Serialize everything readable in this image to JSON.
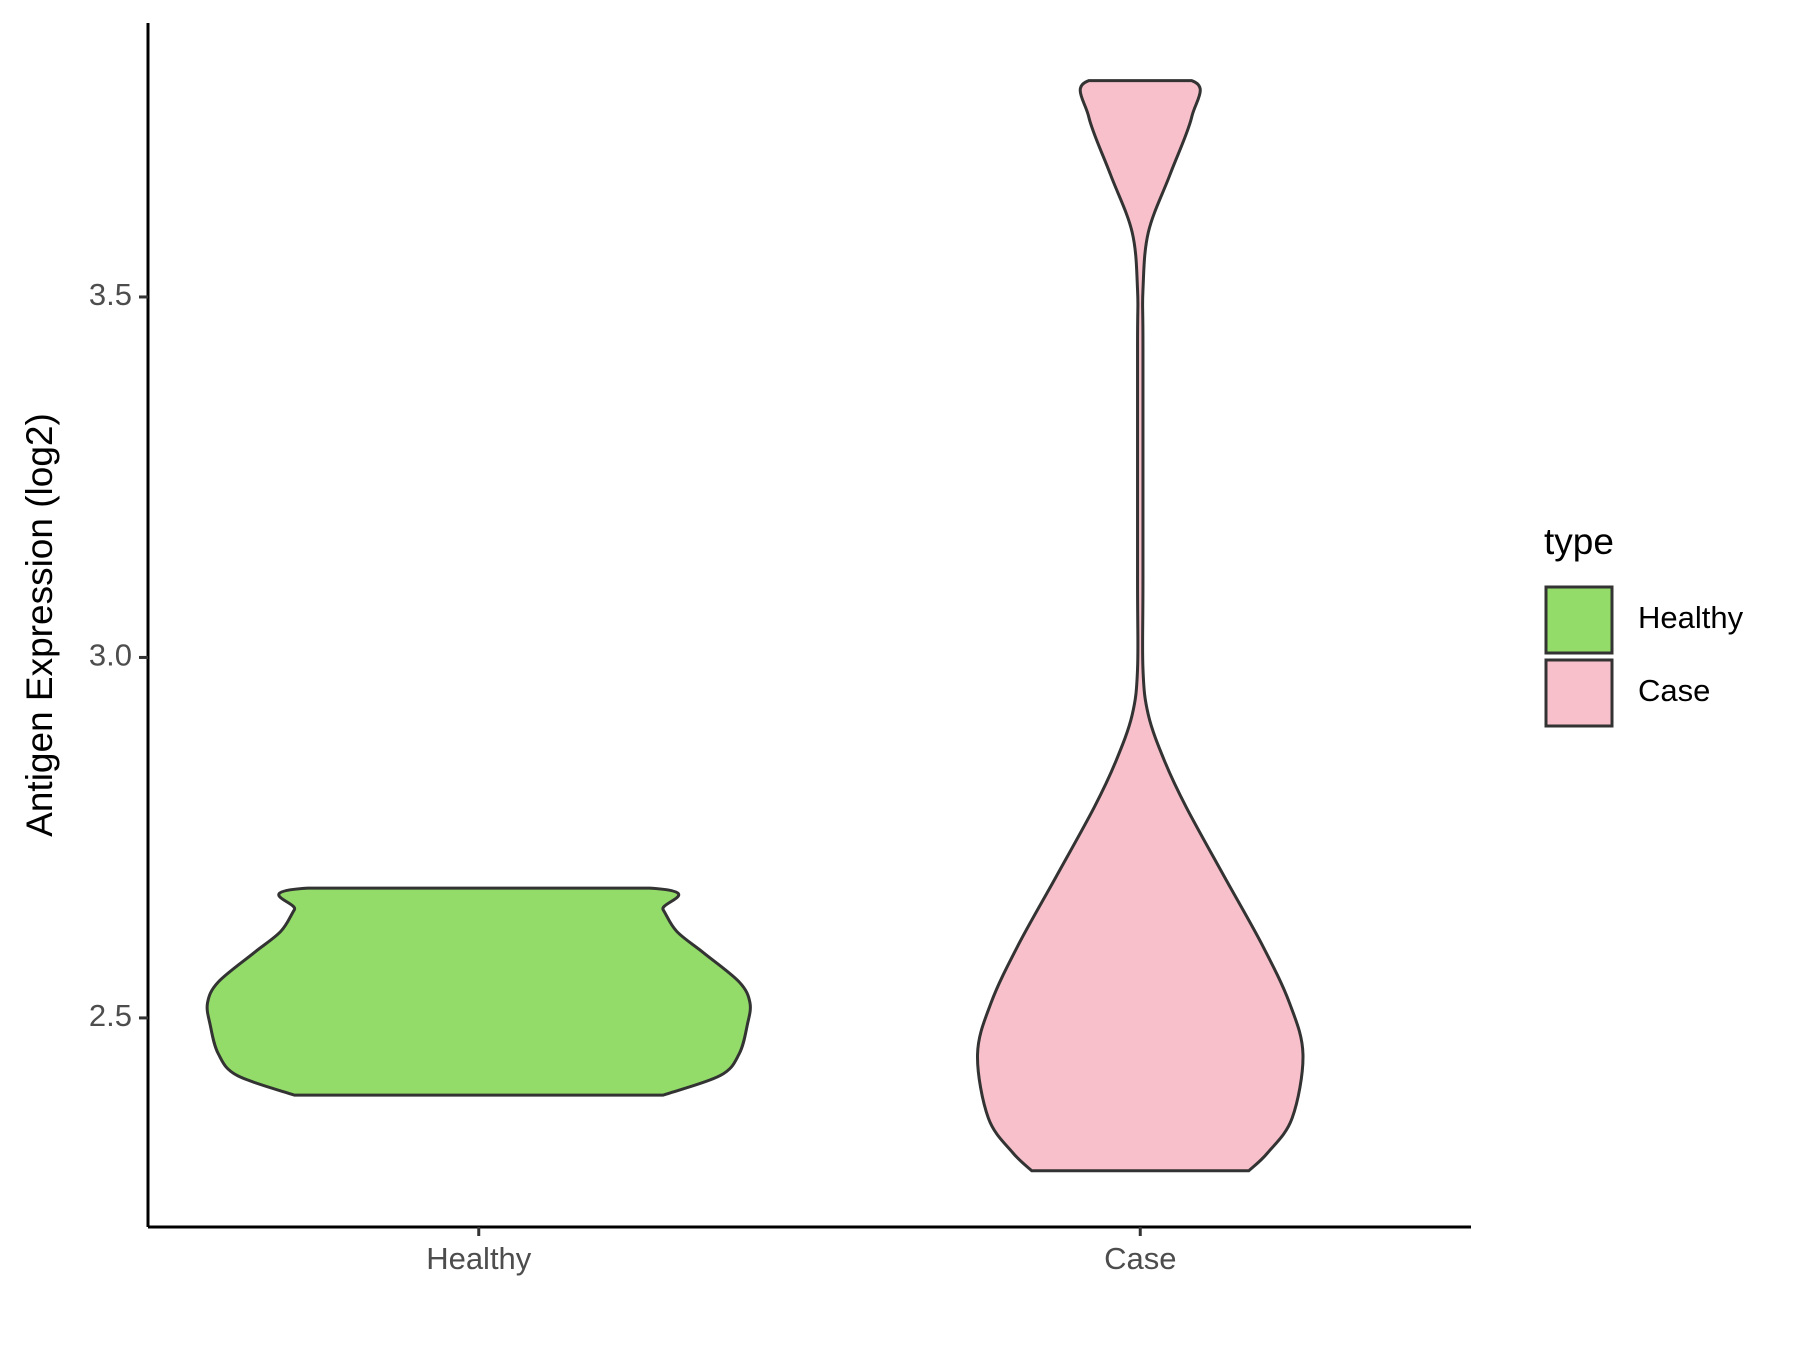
{
  "chart_data": {
    "type": "violin",
    "y_label": "Antigen Expression (log2)",
    "categories": [
      "Healthy",
      "Case"
    ],
    "legend_title": "type",
    "legend_position": "right",
    "series": [
      {
        "name": "Healthy",
        "color": "#93dc6a",
        "y": [
          2.393,
          2.42,
          2.45,
          2.49,
          2.521,
          2.55,
          2.59,
          2.62,
          2.65,
          2.68
        ],
        "density": [
          0.68,
          0.89,
          0.96,
          0.99,
          1,
          0.96,
          0.83,
          0.73,
          0.68,
          0.63
        ]
      },
      {
        "name": "Case",
        "color": "#f8c0cb",
        "y": [
          2.288,
          2.313,
          2.361,
          2.449,
          2.521,
          2.601,
          2.696,
          2.792,
          2.856,
          2.92,
          2.984,
          3.11,
          3.43,
          3.51,
          3.59,
          3.67,
          3.75,
          3.8
        ],
        "density": [
          0.4,
          0.47,
          0.56,
          0.6,
          0.55,
          0.45,
          0.31,
          0.17,
          0.09,
          0.03,
          0.01,
          0.01,
          0.01,
          0.01,
          0.03,
          0.11,
          0.19,
          0.19
        ]
      }
    ],
    "ylim": [
      2.21,
      3.88
    ],
    "yticks": [
      {
        "value": 2.5,
        "label": "2.5"
      },
      {
        "value": 3,
        "label": "3.0"
      },
      {
        "value": 3.5,
        "label": "3.5"
      }
    ],
    "grid": false
  }
}
